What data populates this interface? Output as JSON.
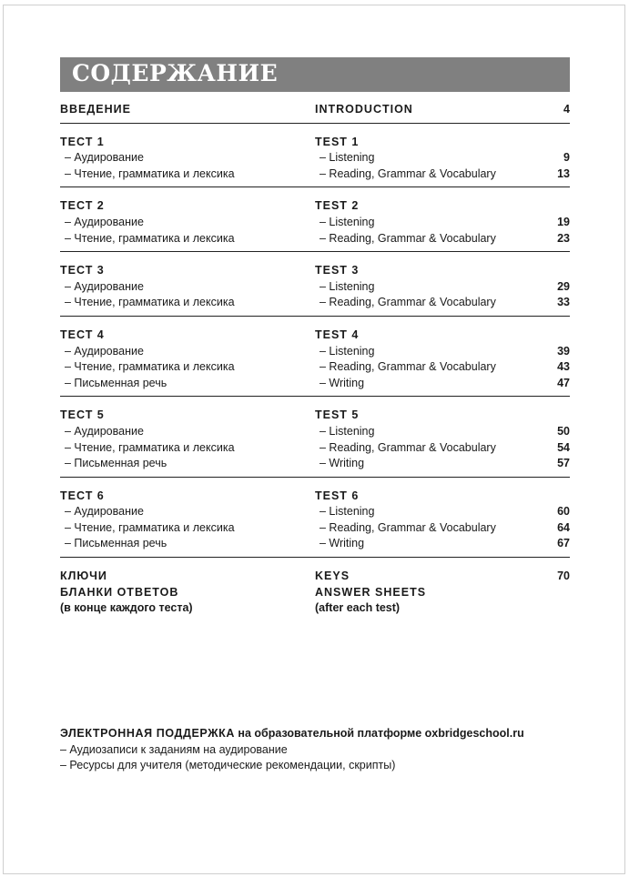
{
  "title": "СОДЕРЖАНИЕ",
  "intro": {
    "ru": "ВВЕДЕНИЕ",
    "en": "INTRODUCTION",
    "page": "4"
  },
  "tests": [
    {
      "ru": "ТЕСТ 1",
      "en": "TEST 1",
      "items": [
        {
          "ru": "– Аудирование",
          "en": "– Listening",
          "page": "9"
        },
        {
          "ru": "– Чтение, грамматика и лексика",
          "en": "– Reading, Grammar & Vocabulary",
          "page": "13"
        }
      ]
    },
    {
      "ru": "ТЕСТ 2",
      "en": "TEST 2",
      "items": [
        {
          "ru": "– Аудирование",
          "en": "– Listening",
          "page": "19"
        },
        {
          "ru": "– Чтение, грамматика и лексика",
          "en": "– Reading, Grammar & Vocabulary",
          "page": "23"
        }
      ]
    },
    {
      "ru": "ТЕСТ 3",
      "en": "TEST 3",
      "items": [
        {
          "ru": "– Аудирование",
          "en": "– Listening",
          "page": "29"
        },
        {
          "ru": "– Чтение, грамматика и лексика",
          "en": "– Reading, Grammar & Vocabulary",
          "page": "33"
        }
      ]
    },
    {
      "ru": "ТЕСТ 4",
      "en": "TEST 4",
      "items": [
        {
          "ru": "– Аудирование",
          "en": "– Listening",
          "page": "39"
        },
        {
          "ru": "– Чтение, грамматика и лексика",
          "en": "– Reading, Grammar & Vocabulary",
          "page": "43"
        },
        {
          "ru": "– Письменная речь",
          "en": "– Writing",
          "page": "47"
        }
      ]
    },
    {
      "ru": "ТЕСТ 5",
      "en": "TEST 5",
      "items": [
        {
          "ru": "– Аудирование",
          "en": "– Listening",
          "page": "50"
        },
        {
          "ru": "– Чтение, грамматика и лексика",
          "en": "– Reading, Grammar & Vocabulary",
          "page": "54"
        },
        {
          "ru": "– Письменная речь",
          "en": "– Writing",
          "page": "57"
        }
      ]
    },
    {
      "ru": "ТЕСТ 6",
      "en": "TEST 6",
      "items": [
        {
          "ru": "– Аудирование",
          "en": "– Listening",
          "page": "60"
        },
        {
          "ru": "– Чтение, грамматика и лексика",
          "en": "– Reading, Grammar & Vocabulary",
          "page": "64"
        },
        {
          "ru": "– Письменная речь",
          "en": "– Writing",
          "page": "67"
        }
      ]
    }
  ],
  "keys": {
    "ru": "КЛЮЧИ",
    "en": "KEYS",
    "page": "70"
  },
  "answer_sheets": {
    "ru": "БЛАНКИ ОТВЕТОВ",
    "en": "ANSWER SHEETS"
  },
  "answer_note": {
    "ru": "(в конце каждого теста)",
    "en": "(after each test)"
  },
  "support": {
    "title": "ЭЛЕКТРОННАЯ ПОДДЕРЖКА",
    "rest": " на образовательной платформе oxbridgeschool.ru",
    "items": [
      "– Аудиозаписи к заданиям на аудирование",
      "– Ресурсы для учителя (методические рекомендации, скрипты)"
    ]
  },
  "colors": {
    "title_bar": "#808080",
    "rule": "#222222"
  }
}
